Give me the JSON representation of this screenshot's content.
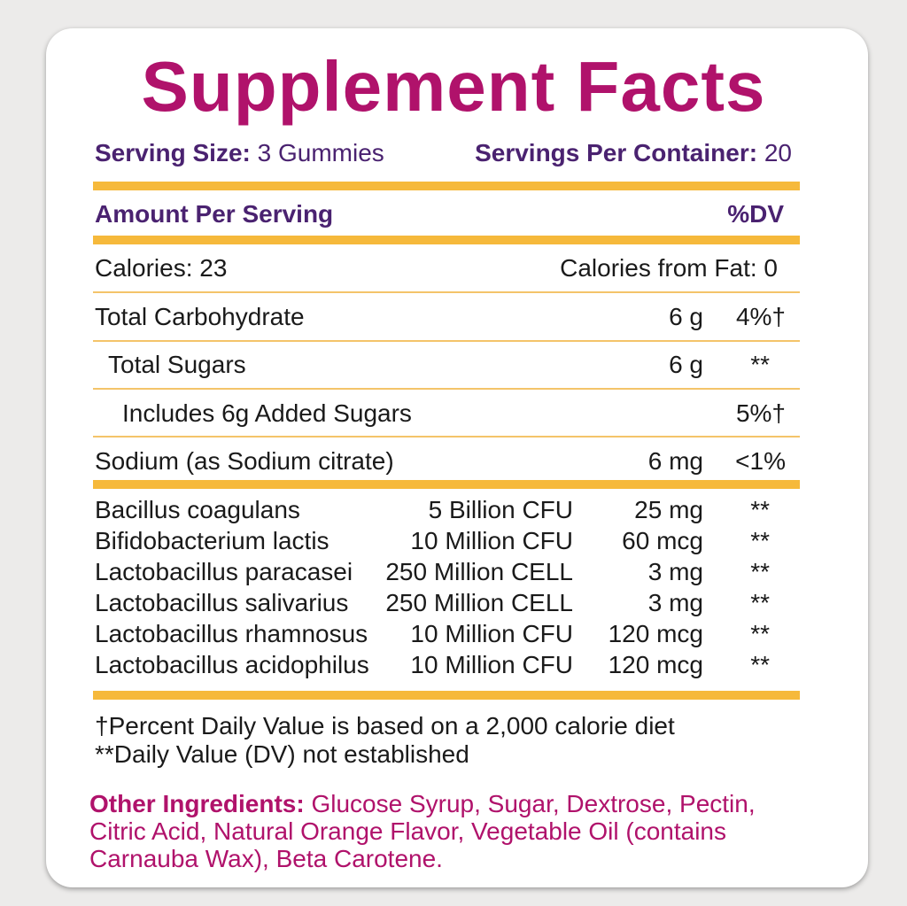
{
  "title": "Supplement Facts",
  "serving_size_label": "Serving Size:",
  "serving_size_value": "3 Gummies",
  "servings_label": "Servings Per Container:",
  "servings_value": "20",
  "amount_per_serving": "Amount Per Serving",
  "dv_header": "%DV",
  "calories": "Calories: 23",
  "calories_from_fat": "Calories from Fat: 0",
  "nutrients": [
    {
      "name": "Total Carbohydrate",
      "amount": "6 g",
      "dv": "4%†"
    },
    {
      "name": "Total Sugars",
      "amount": "6 g",
      "dv": "**"
    },
    {
      "name": "Includes 6g Added Sugars",
      "amount": "",
      "dv": "5%†"
    },
    {
      "name": "Sodium (as Sodium citrate)",
      "amount": "6 mg",
      "dv": "<1%"
    }
  ],
  "probiotics": [
    {
      "name": "Bacillus coagulans",
      "count": "5 Billion CFU",
      "amount": "25 mg",
      "dv": "**"
    },
    {
      "name": "Bifidobacterium lactis",
      "count": "10 Million CFU",
      "amount": "60 mcg",
      "dv": "**"
    },
    {
      "name": "Lactobacillus paracasei",
      "count": "250 Million CELL",
      "amount": "3 mg",
      "dv": "**"
    },
    {
      "name": "Lactobacillus salivarius",
      "count": "250 Million CELL",
      "amount": "3 mg",
      "dv": "**"
    },
    {
      "name": "Lactobacillus rhamnosus",
      "count": "10 Million CFU",
      "amount": "120 mcg",
      "dv": "**"
    },
    {
      "name": "Lactobacillus acidophilus",
      "count": "10 Million CFU",
      "amount": "120 mcg",
      "dv": "**"
    }
  ],
  "footnotes": [
    "†Percent Daily Value is based on a 2,000 calorie diet",
    "**Daily Value (DV) not established"
  ],
  "other_ingredients_label": "Other Ingredients:",
  "other_ingredients_lines": [
    " Glucose Syrup, Sugar, Dextrose, Pectin,",
    "Citric Acid, Natural Orange Flavor, Vegetable Oil (contains",
    "Carnauba Wax), Beta Carotene."
  ],
  "colors": {
    "title": "#b0126b",
    "header": "#4a2270",
    "rule": "#f6b93b"
  }
}
